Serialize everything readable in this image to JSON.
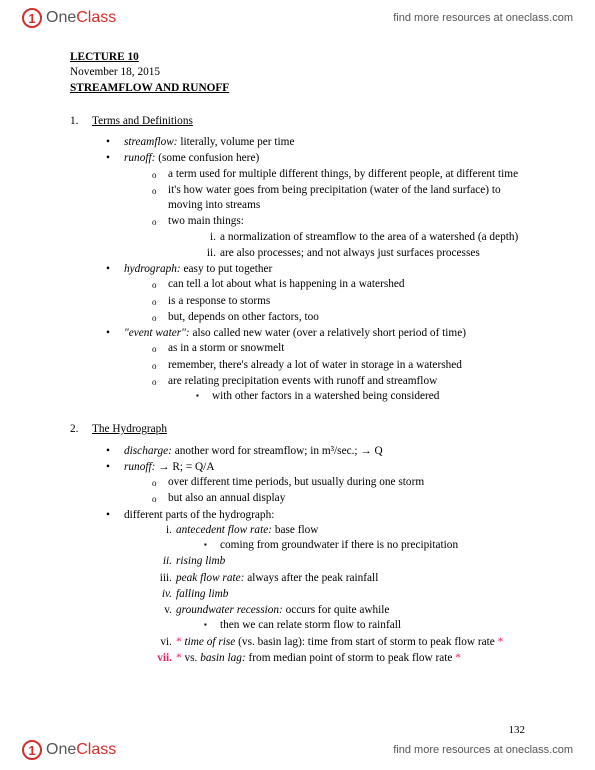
{
  "brand": {
    "one": "One",
    "class": "Class",
    "icon": "1"
  },
  "header_link": "find more resources at oneclass.com",
  "footer_link": "find more resources at oneclass.com",
  "page_number": "132",
  "lecture": {
    "title": "LECTURE 10",
    "date": "November 18, 2015",
    "topic": "STREAMFLOW AND RUNOFF"
  },
  "s1": {
    "num": "1.",
    "heading": "Terms and Definitions",
    "b1_term": "streamflow:",
    "b1_def": " literally, volume per time",
    "b2_term": "runoff:",
    "b2_def": " (some confusion here)",
    "b2_o1": "a term used for multiple different things, by different people, at different time",
    "b2_o2": "it's how water goes from being precipitation (water of the land surface) to moving into streams",
    "b2_o3": "two main things:",
    "b2_o3_i": "a normalization of streamflow to the area of a watershed (a depth)",
    "b2_o3_ii": "are also processes; and not always just surfaces processes",
    "b3_term": "hydrograph:",
    "b3_def": " easy to put together",
    "b3_o1": "can tell a lot about what is happening in a watershed",
    "b3_o2": "is a response to storms",
    "b3_o3": "but, depends on other factors, too",
    "b4_term": "\"event water\":",
    "b4_def": " also called new water (over a relatively short period of time)",
    "b4_o1": "as in a storm or snowmelt",
    "b4_o2": "remember, there's already a lot of water in storage in a watershed",
    "b4_o3": "are relating precipitation events with runoff and streamflow",
    "b4_o3_sq": "with other factors in a watershed being considered"
  },
  "s2": {
    "num": "2.",
    "heading": "The Hydrograph",
    "b1_term": "discharge:",
    "b1_def": " another word for streamflow; in m³/sec.;  →  Q",
    "b2_term": "runoff:",
    "b2_def": " → R;  = Q/A",
    "b2_o1": "over different time periods, but usually during one storm",
    "b2_o2": "but also an annual display",
    "b3": "different parts of the hydrograph:",
    "b3_i_term": "antecedent flow rate:",
    "b3_i_def": " base flow",
    "b3_i_sq": "coming from groundwater if there is no precipitation",
    "b3_ii": "rising limb",
    "b3_iii_term": "peak flow rate:",
    "b3_iii_def": " always after the peak rainfall",
    "b3_iv": "falling limb",
    "b3_v_term": "groundwater recession:",
    "b3_v_def": " occurs for quite awhile",
    "b3_v_sq": "then we can relate storm flow to rainfall",
    "b3_vi_star": "* ",
    "b3_vi_term": "time of rise",
    "b3_vi_def": " (vs. basin lag): time from start of storm to peak flow rate ",
    "b3_vi_star2": "*",
    "b3_vii_rn": "vii.",
    "b3_vii_star": "* ",
    "b3_vii_pre": "vs. ",
    "b3_vii_term": "basin lag:",
    "b3_vii_def": " from median point of storm to peak flow rate ",
    "b3_vii_star2": "*"
  }
}
